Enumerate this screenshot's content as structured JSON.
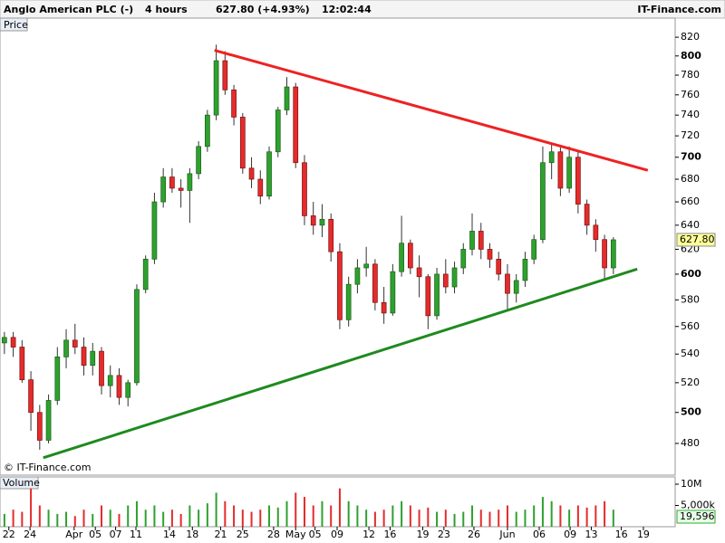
{
  "header": {
    "title": "Anglo American PLC (-)",
    "interval": "4 hours",
    "quote": "627.80 (+4.93%)",
    "time": "12:02:44",
    "brand": "IT-Finance.com"
  },
  "chart_data": {
    "type": "candlestick",
    "panel_label": "Price",
    "copyright": "© IT-Finance.com",
    "volume_label": "Volume",
    "log_scale": true,
    "up_color": "#2ea12e",
    "down_color": "#e52b2b",
    "ylim": [
      462,
      826
    ],
    "yticks": [
      480,
      500,
      520,
      540,
      560,
      580,
      600,
      620,
      640,
      660,
      680,
      700,
      720,
      740,
      760,
      780,
      800,
      820
    ],
    "xlim": [
      -0.5,
      76
    ],
    "xticks": [
      {
        "value": 0.5,
        "label": "22"
      },
      {
        "value": 2.9,
        "label": "24"
      },
      {
        "value": 7.9,
        "label": "Apr"
      },
      {
        "value": 10.3,
        "label": "05"
      },
      {
        "value": 12.6,
        "label": "07"
      },
      {
        "value": 14.9,
        "label": "11"
      },
      {
        "value": 18.7,
        "label": "14"
      },
      {
        "value": 21.3,
        "label": "18"
      },
      {
        "value": 24.5,
        "label": "21"
      },
      {
        "value": 27,
        "label": "25"
      },
      {
        "value": 30.5,
        "label": "28"
      },
      {
        "value": 33,
        "label": "May"
      },
      {
        "value": 35.2,
        "label": "05"
      },
      {
        "value": 37.7,
        "label": "09"
      },
      {
        "value": 41.3,
        "label": "12"
      },
      {
        "value": 43.7,
        "label": "16"
      },
      {
        "value": 47.4,
        "label": "19"
      },
      {
        "value": 49.8,
        "label": "23"
      },
      {
        "value": 53.2,
        "label": "26"
      },
      {
        "value": 57,
        "label": "Jun"
      },
      {
        "value": 60.6,
        "label": "06"
      },
      {
        "value": 64.1,
        "label": "09"
      },
      {
        "value": 66.5,
        "label": "13"
      },
      {
        "value": 69.9,
        "label": "16"
      },
      {
        "value": 72.4,
        "label": "19"
      }
    ],
    "ohlc": [
      [
        548,
        556,
        540,
        552
      ],
      [
        552,
        556,
        538,
        545
      ],
      [
        545,
        550,
        520,
        522
      ],
      [
        522,
        528,
        488,
        500
      ],
      [
        500,
        505,
        476,
        482
      ],
      [
        482,
        512,
        480,
        508
      ],
      [
        508,
        545,
        505,
        538
      ],
      [
        538,
        558,
        530,
        550
      ],
      [
        550,
        562,
        540,
        545
      ],
      [
        545,
        552,
        525,
        532
      ],
      [
        532,
        548,
        525,
        542
      ],
      [
        542,
        545,
        512,
        518
      ],
      [
        518,
        532,
        510,
        525
      ],
      [
        525,
        530,
        505,
        510
      ],
      [
        510,
        522,
        504,
        520
      ],
      [
        520,
        592,
        518,
        588
      ],
      [
        588,
        615,
        585,
        612
      ],
      [
        612,
        668,
        608,
        660
      ],
      [
        660,
        690,
        655,
        682
      ],
      [
        682,
        690,
        668,
        672
      ],
      [
        672,
        680,
        655,
        670
      ],
      [
        670,
        690,
        642,
        685
      ],
      [
        685,
        715,
        680,
        710
      ],
      [
        710,
        745,
        705,
        740
      ],
      [
        740,
        812,
        735,
        795
      ],
      [
        795,
        805,
        760,
        765
      ],
      [
        765,
        770,
        730,
        738
      ],
      [
        738,
        742,
        685,
        690
      ],
      [
        690,
        700,
        672,
        680
      ],
      [
        680,
        688,
        658,
        665
      ],
      [
        665,
        710,
        662,
        705
      ],
      [
        705,
        748,
        700,
        745
      ],
      [
        745,
        778,
        740,
        768
      ],
      [
        768,
        772,
        690,
        695
      ],
      [
        695,
        702,
        640,
        648
      ],
      [
        648,
        660,
        632,
        640
      ],
      [
        640,
        658,
        630,
        645
      ],
      [
        645,
        650,
        610,
        618
      ],
      [
        618,
        625,
        558,
        565
      ],
      [
        565,
        598,
        560,
        592
      ],
      [
        592,
        612,
        585,
        605
      ],
      [
        605,
        622,
        598,
        608
      ],
      [
        608,
        612,
        572,
        578
      ],
      [
        578,
        590,
        562,
        570
      ],
      [
        570,
        608,
        568,
        602
      ],
      [
        602,
        648,
        598,
        625
      ],
      [
        625,
        628,
        600,
        605
      ],
      [
        605,
        615,
        582,
        598
      ],
      [
        598,
        600,
        558,
        568
      ],
      [
        568,
        605,
        565,
        600
      ],
      [
        600,
        612,
        585,
        590
      ],
      [
        590,
        610,
        585,
        605
      ],
      [
        605,
        625,
        600,
        620
      ],
      [
        620,
        650,
        615,
        635
      ],
      [
        635,
        642,
        612,
        620
      ],
      [
        620,
        625,
        605,
        612
      ],
      [
        612,
        618,
        595,
        600
      ],
      [
        600,
        608,
        572,
        585
      ],
      [
        585,
        600,
        578,
        595
      ],
      [
        595,
        618,
        590,
        612
      ],
      [
        612,
        632,
        608,
        628
      ],
      [
        628,
        710,
        625,
        695
      ],
      [
        695,
        712,
        680,
        705
      ],
      [
        705,
        710,
        665,
        672
      ],
      [
        672,
        710,
        668,
        700
      ],
      [
        700,
        705,
        650,
        658
      ],
      [
        658,
        662,
        632,
        640
      ],
      [
        640,
        645,
        618,
        628
      ],
      [
        628,
        632,
        596,
        605
      ],
      [
        605,
        630,
        600,
        627.8
      ]
    ],
    "price_tag": "627.80",
    "volume": [
      3,
      4,
      3.5,
      9,
      5,
      4,
      3,
      3.5,
      2.5,
      4,
      3,
      5,
      4,
      3,
      5,
      6,
      4,
      5,
      3.5,
      4,
      3,
      5,
      4,
      5.5,
      8,
      6,
      5,
      4,
      3.5,
      4,
      5,
      4.5,
      6,
      8,
      7,
      5,
      6,
      5,
      9,
      6,
      5,
      4,
      3.5,
      4,
      5,
      6,
      5,
      4,
      4.5,
      3.5,
      4,
      3,
      3.5,
      5,
      4,
      3.5,
      4,
      5,
      3.5,
      4,
      5,
      7,
      6,
      5,
      4,
      5,
      4.5,
      5,
      6,
      4
    ],
    "vlim": [
      0,
      11.7
    ],
    "vticks": [
      {
        "value": 10,
        "label": "10M"
      },
      {
        "value": 5,
        "label": "5,000k"
      }
    ],
    "volume_tag": "19,596",
    "trendlines": [
      {
        "color": "#ee2222",
        "x": [
          23.8,
          72.9
        ],
        "y": [
          806,
          688
        ]
      },
      {
        "color": "#1f8a1f",
        "x": [
          4.4,
          71.7
        ],
        "y": [
          471,
          604
        ]
      }
    ]
  }
}
